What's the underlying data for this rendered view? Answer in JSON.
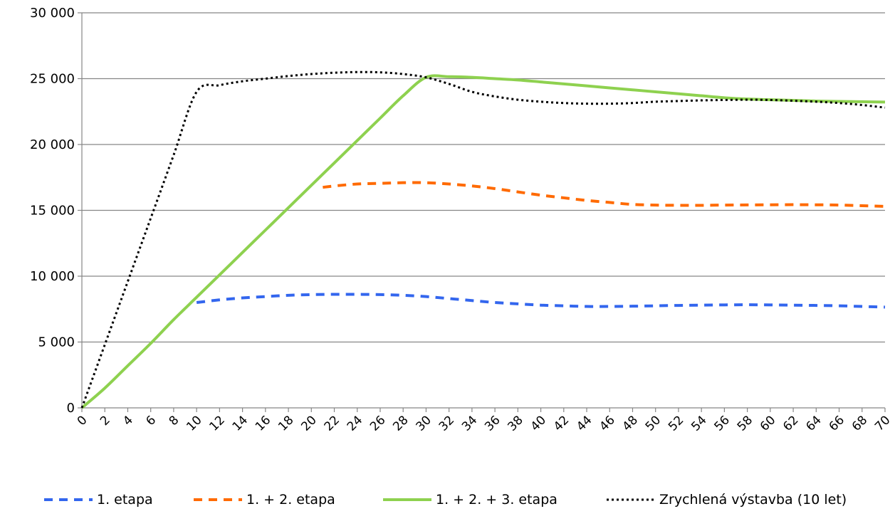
{
  "chart_data": {
    "type": "line",
    "title": "",
    "xlabel": "",
    "ylabel": "",
    "xlim": [
      0,
      70
    ],
    "ylim": [
      0,
      30000
    ],
    "grid": "horizontal",
    "legend_position": "bottom",
    "y_ticks": [
      {
        "value": 0,
        "label": "0"
      },
      {
        "value": 5000,
        "label": "5 000"
      },
      {
        "value": 10000,
        "label": "10 000"
      },
      {
        "value": 15000,
        "label": "15 000"
      },
      {
        "value": 20000,
        "label": "20 000"
      },
      {
        "value": 25000,
        "label": "25 000"
      },
      {
        "value": 30000,
        "label": "30 000"
      }
    ],
    "x_ticks": [
      "0",
      "2",
      "4",
      "6",
      "8",
      "10",
      "12",
      "14",
      "16",
      "18",
      "20",
      "22",
      "24",
      "26",
      "28",
      "30",
      "32",
      "34",
      "36",
      "38",
      "40",
      "42",
      "44",
      "46",
      "48",
      "50",
      "52",
      "54",
      "56",
      "58",
      "60",
      "62",
      "64",
      "66",
      "68",
      "70"
    ],
    "series": [
      {
        "name": "1. etapa",
        "color": "#3366ee",
        "style": "dashed",
        "x": [
          10,
          12,
          14,
          16,
          18,
          20,
          22,
          24,
          26,
          28,
          30,
          32,
          34,
          36,
          38,
          40,
          42,
          44,
          46,
          48,
          50,
          52,
          54,
          56,
          58,
          60,
          62,
          64,
          66,
          68,
          70
        ],
        "y": [
          8000,
          8200,
          8350,
          8450,
          8550,
          8600,
          8620,
          8620,
          8600,
          8550,
          8450,
          8300,
          8150,
          8000,
          7900,
          7800,
          7750,
          7700,
          7700,
          7720,
          7750,
          7780,
          7800,
          7820,
          7830,
          7820,
          7800,
          7780,
          7750,
          7700,
          7650
        ]
      },
      {
        "name": "1. + 2. etapa",
        "color": "#ff6a00",
        "style": "dashed",
        "x": [
          21,
          22,
          24,
          26,
          28,
          30,
          32,
          34,
          36,
          38,
          40,
          42,
          44,
          46,
          48,
          50,
          52,
          54,
          56,
          58,
          60,
          62,
          64,
          66,
          68,
          70
        ],
        "y": [
          16750,
          16850,
          17000,
          17050,
          17100,
          17100,
          17000,
          16850,
          16650,
          16400,
          16150,
          15950,
          15750,
          15600,
          15450,
          15400,
          15380,
          15380,
          15400,
          15410,
          15420,
          15430,
          15420,
          15400,
          15350,
          15300
        ]
      },
      {
        "name": "1. + 2. + 3. etapa",
        "color": "#8ed14f",
        "style": "solid",
        "x": [
          0,
          2,
          4,
          6,
          8,
          10,
          12,
          14,
          16,
          18,
          20,
          22,
          24,
          26,
          28,
          30,
          32,
          34,
          36,
          38,
          40,
          42,
          44,
          46,
          48,
          50,
          52,
          54,
          56,
          58,
          60,
          62,
          64,
          66,
          68,
          70
        ],
        "y": [
          0,
          1500,
          3200,
          4900,
          6700,
          8400,
          10100,
          11800,
          13500,
          15200,
          16900,
          18600,
          20300,
          22000,
          23700,
          25100,
          25150,
          25100,
          25000,
          24900,
          24750,
          24600,
          24450,
          24300,
          24150,
          24000,
          23850,
          23700,
          23550,
          23450,
          23400,
          23350,
          23300,
          23270,
          23250,
          23220
        ]
      },
      {
        "name": "Zrychlená výstavba (10 let)",
        "color": "#000000",
        "style": "dotted",
        "x": [
          0,
          2,
          4,
          6,
          8,
          10,
          12,
          14,
          16,
          18,
          20,
          22,
          24,
          26,
          28,
          30,
          32,
          34,
          36,
          38,
          40,
          42,
          44,
          46,
          48,
          50,
          52,
          54,
          56,
          58,
          60,
          62,
          64,
          66,
          68,
          70
        ],
        "y": [
          0,
          4800,
          9600,
          14400,
          19200,
          24000,
          24500,
          24800,
          25000,
          25200,
          25350,
          25450,
          25500,
          25480,
          25350,
          25100,
          24600,
          24000,
          23650,
          23400,
          23250,
          23150,
          23100,
          23100,
          23150,
          23250,
          23300,
          23350,
          23380,
          23400,
          23380,
          23320,
          23250,
          23150,
          23000,
          22800
        ]
      }
    ]
  }
}
